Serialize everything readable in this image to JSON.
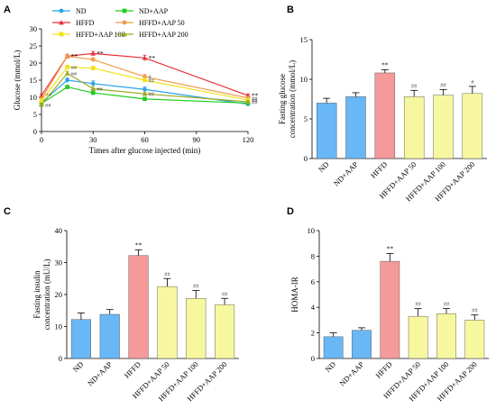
{
  "panels": [
    {
      "id": "A",
      "label": "A"
    },
    {
      "id": "B",
      "label": "B"
    },
    {
      "id": "C",
      "label": "C"
    },
    {
      "id": "D",
      "label": "D"
    }
  ],
  "chart_data": [
    {
      "panel": "A",
      "type": "line",
      "xlabel": "Times after glucose injected (min)",
      "ylabel": "Glucose (mmol/L)",
      "xlim": [
        0,
        120
      ],
      "ylim": [
        0,
        30
      ],
      "xticks": [
        0,
        30,
        60,
        90,
        120
      ],
      "yticks": [
        0,
        5,
        10,
        15,
        20,
        25,
        30
      ],
      "grid": false,
      "legend_position": "top",
      "x": [
        0,
        15,
        30,
        60,
        120
      ],
      "series": [
        {
          "name": "ND",
          "color": "#29a3e6",
          "marker": "circle",
          "values": [
            8.5,
            15.0,
            14.0,
            12.3,
            8.0
          ],
          "errors": [
            0.5,
            0.7,
            0.8,
            0.7,
            0.3
          ],
          "sig": [
            "",
            "",
            "",
            "",
            ""
          ]
        },
        {
          "name": "ND+AAP",
          "color": "#22cc22",
          "marker": "square",
          "values": [
            8.2,
            13.0,
            11.3,
            9.5,
            8.3
          ],
          "errors": [
            0.4,
            0.5,
            0.5,
            0.5,
            0.3
          ],
          "sig": [
            "",
            "",
            "",
            "",
            ""
          ]
        },
        {
          "name": "HFFD",
          "color": "#e8323a",
          "marker": "triangle",
          "values": [
            10.5,
            22.0,
            22.8,
            21.5,
            10.5
          ],
          "errors": [
            0.5,
            0.6,
            0.6,
            0.8,
            0.5
          ],
          "sig": [
            "**",
            "**",
            "**",
            "**",
            "**"
          ]
        },
        {
          "name": "HFFD+AAP 50",
          "color": "#f29a4a",
          "marker": "circle",
          "values": [
            9.5,
            22.0,
            21.0,
            16.0,
            9.8
          ],
          "errors": [
            0.5,
            0.5,
            0.6,
            0.7,
            0.4
          ],
          "sig": [
            "",
            "",
            "",
            "#",
            "##"
          ]
        },
        {
          "name": "HFFD+AAP 100",
          "color": "#f2e21a",
          "marker": "square",
          "values": [
            9.0,
            18.8,
            18.5,
            15.0,
            9.2
          ],
          "errors": [
            0.5,
            0.6,
            0.6,
            0.6,
            0.4
          ],
          "sig": [
            "",
            "##",
            "",
            "##",
            "##"
          ]
        },
        {
          "name": "HFFD+AAP 200",
          "color": "#9caa22",
          "marker": "triangle",
          "values": [
            7.8,
            17.0,
            12.5,
            11.0,
            8.7
          ],
          "errors": [
            0.4,
            0.6,
            0.7,
            0.5,
            0.3
          ],
          "sig": [
            "##",
            "##",
            "##",
            "##",
            "##"
          ]
        }
      ]
    },
    {
      "panel": "B",
      "type": "bar",
      "ylabel": "Fasting glucose concentration (mmol/L)",
      "ylabel_lines": [
        "Fasting glucose",
        "concentration (mmol/L)"
      ],
      "ylim": [
        0,
        15
      ],
      "yticks": [
        0,
        5,
        10,
        15
      ],
      "categories": [
        "ND",
        "ND+AAP",
        "HFFD",
        "HFFD+AAP 50",
        "HFFD+AAP 100",
        "HFFD+AAP 200"
      ],
      "values": [
        7.0,
        7.8,
        10.8,
        7.8,
        8.0,
        8.2
      ],
      "errors": [
        0.6,
        0.5,
        0.4,
        0.8,
        0.7,
        0.9
      ],
      "sig": [
        "",
        "",
        "**",
        "##",
        "##",
        "#"
      ],
      "colors": [
        "#6ab7f5",
        "#6ab7f5",
        "#f49a9a",
        "#f7f7a0",
        "#f7f7a0",
        "#f7f7a0"
      ]
    },
    {
      "panel": "C",
      "type": "bar",
      "ylabel": "Fasting insulin concentration (mU/L)",
      "ylabel_lines": [
        "Fasting insulin",
        "concentration (mU/L)"
      ],
      "ylim": [
        0,
        40
      ],
      "yticks": [
        0,
        10,
        20,
        30,
        40
      ],
      "categories": [
        "ND",
        "ND+AAP",
        "HFFD",
        "HFFD+AAP 50",
        "HFFD+AAP 100",
        "HFFD+AAP 200"
      ],
      "values": [
        12.2,
        13.8,
        32.2,
        22.5,
        18.8,
        16.8
      ],
      "errors": [
        2.0,
        1.5,
        1.8,
        2.5,
        2.5,
        2.0
      ],
      "sig": [
        "",
        "",
        "**",
        "##",
        "##",
        "##"
      ],
      "colors": [
        "#6ab7f5",
        "#6ab7f5",
        "#f49a9a",
        "#f7f7a0",
        "#f7f7a0",
        "#f7f7a0"
      ]
    },
    {
      "panel": "D",
      "type": "bar",
      "ylabel": "HOMA-IR",
      "ylabel_lines": [
        "HOMA-IR"
      ],
      "ylim": [
        0,
        10
      ],
      "yticks": [
        0,
        2,
        4,
        6,
        8,
        10
      ],
      "categories": [
        "ND",
        "ND+AAP",
        "HFFD",
        "HFFD+AAP 50",
        "HFFD+AAP 100",
        "HFFD+AAP 200"
      ],
      "values": [
        1.7,
        2.2,
        7.6,
        3.3,
        3.5,
        3.0
      ],
      "errors": [
        0.3,
        0.2,
        0.6,
        0.6,
        0.4,
        0.4
      ],
      "sig": [
        "",
        "",
        "**",
        "##",
        "##",
        "##"
      ],
      "colors": [
        "#6ab7f5",
        "#6ab7f5",
        "#f49a9a",
        "#f7f7a0",
        "#f7f7a0",
        "#f7f7a0"
      ]
    }
  ]
}
